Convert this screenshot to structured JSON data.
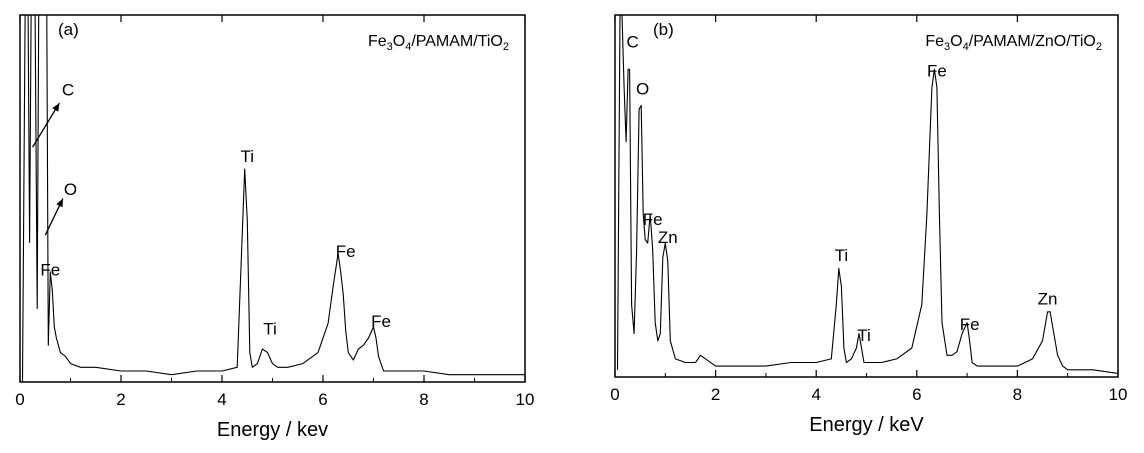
{
  "chart_data": [
    {
      "type": "line",
      "panel_label": "(a)",
      "sample_label": {
        "parts": [
          {
            "t": "Fe",
            "sub": false
          },
          {
            "t": "3",
            "sub": true
          },
          {
            "t": "O",
            "sub": false
          },
          {
            "t": "4",
            "sub": true
          },
          {
            "t": "/PAMAM/TiO",
            "sub": false
          },
          {
            "t": "2",
            "sub": true
          }
        ]
      },
      "xlabel": "Energy / kev",
      "ylabel": "",
      "xlim": [
        0,
        10
      ],
      "ylim": [
        0,
        100
      ],
      "xticks": [
        0,
        2,
        4,
        6,
        8,
        10
      ],
      "grid": false,
      "series": [
        {
          "x": [
            0.05,
            0.1,
            0.13,
            0.16,
            0.19,
            0.22,
            0.26,
            0.3,
            0.34,
            0.37,
            0.4,
            0.45,
            0.5,
            0.53,
            0.56,
            0.6,
            0.64,
            0.68,
            0.72,
            0.76,
            0.8,
            0.9,
            1.0,
            1.2,
            1.5,
            2.0,
            2.5,
            3.0,
            3.5,
            4.0,
            4.3,
            4.4,
            4.45,
            4.5,
            4.55,
            4.6,
            4.7,
            4.8,
            4.9,
            5.0,
            5.1,
            5.3,
            5.6,
            5.9,
            6.1,
            6.2,
            6.3,
            6.35,
            6.4,
            6.45,
            6.5,
            6.6,
            6.7,
            6.8,
            6.9,
            7.0,
            7.05,
            7.1,
            7.2,
            7.4,
            7.7,
            8.0,
            8.5,
            9.0,
            9.5,
            10.0
          ],
          "y": [
            0,
            100,
            100,
            100,
            38,
            100,
            100,
            100,
            20,
            100,
            100,
            100,
            100,
            100,
            10,
            30,
            25,
            15,
            12,
            10,
            8,
            7,
            5,
            4,
            4,
            3,
            3,
            2,
            3,
            3,
            4,
            40,
            58,
            44,
            8,
            4,
            5,
            9,
            8,
            5,
            4,
            4,
            5,
            8,
            16,
            26,
            35,
            30,
            24,
            14,
            8,
            6,
            9,
            10,
            12,
            15,
            12,
            7,
            3,
            3,
            3,
            3,
            2,
            2,
            2,
            2
          ]
        }
      ],
      "annotations": [
        {
          "text": "C",
          "x": 0.95,
          "y": 78
        },
        {
          "text": "O",
          "x": 1.0,
          "y": 51
        },
        {
          "text": "Fe",
          "x": 0.6,
          "y": 29
        },
        {
          "text": "Ti",
          "x": 4.5,
          "y": 60
        },
        {
          "text": "Ti",
          "x": 4.95,
          "y": 13
        },
        {
          "text": "Fe",
          "x": 6.45,
          "y": 34
        },
        {
          "text": "Fe",
          "x": 7.15,
          "y": 15
        }
      ],
      "arrows": [
        {
          "from": [
            0.25,
            64
          ],
          "to": [
            0.78,
            76
          ]
        },
        {
          "from": [
            0.5,
            40
          ],
          "to": [
            0.85,
            50
          ]
        }
      ]
    },
    {
      "type": "line",
      "panel_label": "(b)",
      "sample_label": {
        "parts": [
          {
            "t": "Fe",
            "sub": false
          },
          {
            "t": "3",
            "sub": true
          },
          {
            "t": "O",
            "sub": false
          },
          {
            "t": "4",
            "sub": true
          },
          {
            "t": "/PAMAM/ZnO/TiO",
            "sub": false
          },
          {
            "t": "2",
            "sub": true
          }
        ]
      },
      "xlabel": "Energy / keV",
      "ylabel": "",
      "xlim": [
        0,
        10
      ],
      "ylim": [
        0,
        100
      ],
      "xticks": [
        0,
        2,
        4,
        6,
        8,
        10
      ],
      "grid": false,
      "series": [
        {
          "x": [
            0.05,
            0.1,
            0.14,
            0.18,
            0.22,
            0.26,
            0.29,
            0.33,
            0.38,
            0.43,
            0.48,
            0.52,
            0.56,
            0.6,
            0.65,
            0.7,
            0.75,
            0.8,
            0.85,
            0.9,
            0.95,
            1.0,
            1.05,
            1.1,
            1.2,
            1.4,
            1.6,
            1.7,
            1.8,
            2.0,
            2.5,
            3.0,
            3.5,
            4.0,
            4.3,
            4.4,
            4.45,
            4.5,
            4.55,
            4.6,
            4.7,
            4.8,
            4.85,
            4.9,
            4.95,
            5.0,
            5.3,
            5.6,
            5.9,
            6.1,
            6.2,
            6.3,
            6.35,
            6.4,
            6.45,
            6.5,
            6.6,
            6.7,
            6.8,
            6.9,
            7.0,
            7.05,
            7.1,
            7.2,
            7.4,
            7.7,
            8.0,
            8.3,
            8.5,
            8.6,
            8.65,
            8.7,
            8.8,
            8.9,
            9.0,
            9.5,
            10.0
          ],
          "y": [
            2,
            100,
            100,
            80,
            65,
            85,
            85,
            20,
            12,
            35,
            74,
            75,
            45,
            38,
            37,
            45,
            35,
            15,
            10,
            12,
            33,
            37,
            32,
            10,
            5,
            4,
            4,
            6,
            5,
            3,
            3,
            3,
            4,
            4,
            5,
            20,
            30,
            25,
            8,
            4,
            5,
            8,
            12,
            8,
            4,
            4,
            4,
            5,
            8,
            20,
            45,
            80,
            85,
            80,
            45,
            15,
            6,
            6,
            7,
            12,
            15,
            10,
            4,
            3,
            3,
            3,
            3,
            5,
            10,
            18,
            18,
            14,
            6,
            3,
            2,
            2,
            1
          ]
        }
      ],
      "annotations": [
        {
          "text": "C",
          "x": 0.35,
          "y": 91
        },
        {
          "text": "O",
          "x": 0.55,
          "y": 78
        },
        {
          "text": "Fe",
          "x": 0.75,
          "y": 42
        },
        {
          "text": "Zn",
          "x": 1.05,
          "y": 37
        },
        {
          "text": "Ti",
          "x": 4.5,
          "y": 32
        },
        {
          "text": "Ti",
          "x": 4.95,
          "y": 10
        },
        {
          "text": "Fe",
          "x": 6.4,
          "y": 83
        },
        {
          "text": "Fe",
          "x": 7.05,
          "y": 13
        },
        {
          "text": "Zn",
          "x": 8.6,
          "y": 20
        }
      ],
      "arrows": []
    }
  ]
}
